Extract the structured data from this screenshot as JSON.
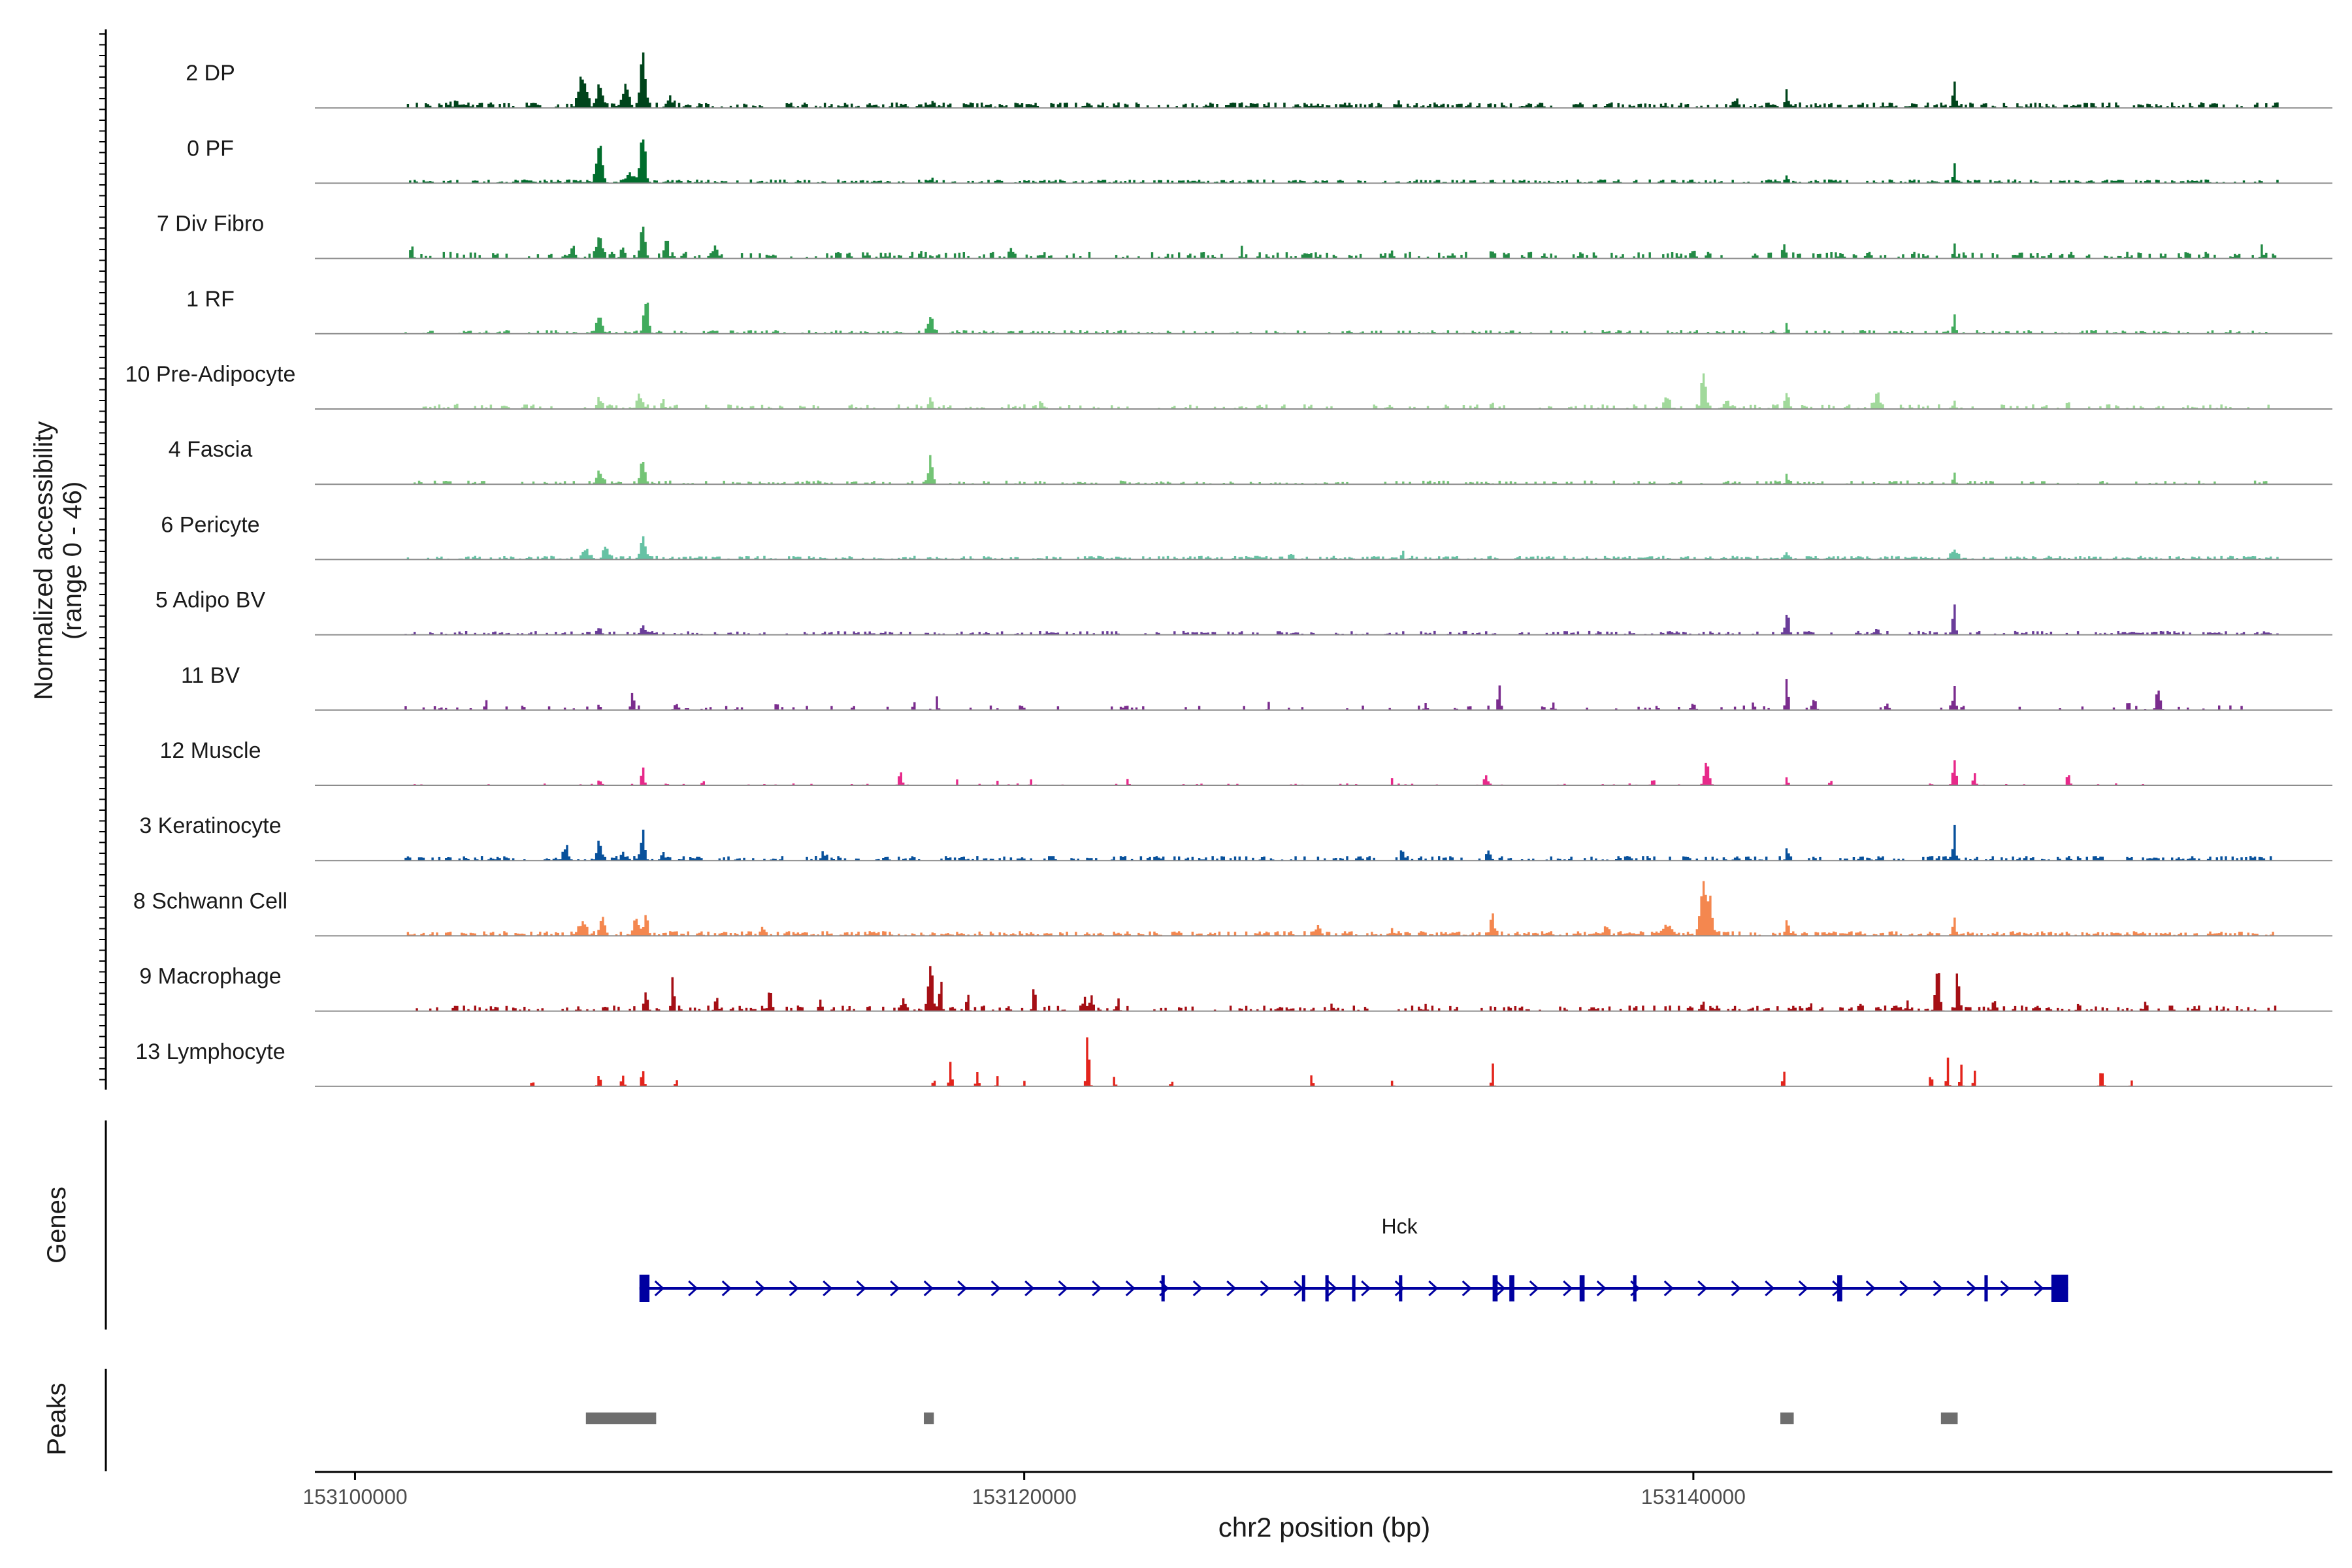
{
  "chart_data": {
    "type": "area",
    "title": "",
    "ylabel": "Normalized accessibility",
    "ylabel_range": "(range 0 - 46)",
    "y_range": [
      0,
      46
    ],
    "xlabel": "chr2 position (bp)",
    "chromosome": "chr2",
    "x_range": [
      153098800,
      153159100
    ],
    "x_ticks": [
      {
        "value": 153100000,
        "label": "153100000"
      },
      {
        "value": 153120000,
        "label": "153120000"
      },
      {
        "value": 153140000,
        "label": "153140000"
      }
    ],
    "tracks": [
      {
        "name": "2 DP",
        "color": "#00441b",
        "noise": 0.06,
        "density": 0.55,
        "peaks": [
          [
            153106800,
            0.45,
            110
          ],
          [
            153107300,
            0.3,
            80
          ],
          [
            153108100,
            0.35,
            90
          ],
          [
            153108600,
            0.85,
            70
          ],
          [
            153109400,
            0.15,
            90
          ],
          [
            153103200,
            0.06,
            200
          ],
          [
            153117200,
            0.05,
            150
          ],
          [
            153131200,
            0.06,
            60
          ],
          [
            153141300,
            0.12,
            60
          ],
          [
            153142800,
            0.25,
            40
          ],
          [
            153147800,
            0.4,
            40
          ]
        ]
      },
      {
        "name": "0 PF",
        "color": "#006d2c",
        "noise": 0.04,
        "density": 0.5,
        "peaks": [
          [
            153107300,
            0.55,
            90
          ],
          [
            153108600,
            0.8,
            70
          ],
          [
            153108200,
            0.12,
            150
          ],
          [
            153117200,
            0.05,
            100
          ],
          [
            153142800,
            0.15,
            40
          ],
          [
            153147800,
            0.3,
            40
          ]
        ]
      },
      {
        "name": "7 Div Fibro",
        "color": "#238b45",
        "noise": 0.07,
        "density": 0.35,
        "peaks": [
          [
            153101700,
            0.15,
            40
          ],
          [
            153106500,
            0.15,
            80
          ],
          [
            153107300,
            0.4,
            80
          ],
          [
            153108000,
            0.2,
            60
          ],
          [
            153108600,
            0.55,
            70
          ],
          [
            153109300,
            0.3,
            60
          ],
          [
            153110800,
            0.15,
            60
          ],
          [
            153116900,
            0.12,
            50
          ],
          [
            153119600,
            0.15,
            50
          ],
          [
            153126500,
            0.12,
            40
          ],
          [
            153131000,
            0.12,
            40
          ],
          [
            153134000,
            0.12,
            40
          ],
          [
            153140000,
            0.15,
            60
          ],
          [
            153142700,
            0.25,
            40
          ],
          [
            153147800,
            0.2,
            40
          ],
          [
            153157000,
            0.15,
            40
          ]
        ]
      },
      {
        "name": "1 RF",
        "color": "#41ab5d",
        "noise": 0.04,
        "density": 0.35,
        "peaks": [
          [
            153107300,
            0.25,
            90
          ],
          [
            153108700,
            0.55,
            70
          ],
          [
            153117200,
            0.25,
            80
          ],
          [
            153142800,
            0.15,
            40
          ],
          [
            153147800,
            0.3,
            40
          ]
        ]
      },
      {
        "name": "10 Pre-Adipocyte",
        "color": "#a1d99b",
        "noise": 0.05,
        "density": 0.28,
        "peaks": [
          [
            153103000,
            0.08,
            40
          ],
          [
            153107300,
            0.18,
            60
          ],
          [
            153108500,
            0.25,
            70
          ],
          [
            153109200,
            0.15,
            50
          ],
          [
            153117200,
            0.2,
            60
          ],
          [
            153120500,
            0.12,
            40
          ],
          [
            153134000,
            0.1,
            40
          ],
          [
            153139200,
            0.18,
            80
          ],
          [
            153140300,
            0.55,
            60
          ],
          [
            153141000,
            0.15,
            60
          ],
          [
            153142800,
            0.3,
            60
          ],
          [
            153145500,
            0.25,
            80
          ],
          [
            153147800,
            0.15,
            40
          ],
          [
            153151200,
            0.15,
            40
          ]
        ]
      },
      {
        "name": "4 Fascia",
        "color": "#74c476",
        "noise": 0.04,
        "density": 0.3,
        "peaks": [
          [
            153107300,
            0.22,
            80
          ],
          [
            153108600,
            0.4,
            70
          ],
          [
            153117200,
            0.45,
            60
          ],
          [
            153142800,
            0.18,
            40
          ],
          [
            153147800,
            0.2,
            40
          ]
        ]
      },
      {
        "name": "6 Pericyte",
        "color": "#66c2a4",
        "noise": 0.04,
        "density": 0.55,
        "peaks": [
          [
            153106900,
            0.15,
            80
          ],
          [
            153107500,
            0.2,
            80
          ],
          [
            153108600,
            0.35,
            70
          ],
          [
            153128000,
            0.1,
            60
          ],
          [
            153131300,
            0.1,
            40
          ],
          [
            153142800,
            0.12,
            40
          ],
          [
            153147800,
            0.15,
            100
          ]
        ]
      },
      {
        "name": "5 Adipo BV",
        "color": "#6a3d9a",
        "noise": 0.04,
        "density": 0.4,
        "peaks": [
          [
            153107300,
            0.12,
            60
          ],
          [
            153108600,
            0.18,
            60
          ],
          [
            153142800,
            0.3,
            60
          ],
          [
            153147800,
            0.5,
            40
          ],
          [
            153145500,
            0.1,
            60
          ]
        ]
      },
      {
        "name": "11 BV",
        "color": "#7b2d8e",
        "noise": 0.05,
        "density": 0.12,
        "peaks": [
          [
            153103900,
            0.15,
            30
          ],
          [
            153107300,
            0.12,
            30
          ],
          [
            153108300,
            0.25,
            50
          ],
          [
            153109600,
            0.1,
            60
          ],
          [
            153112600,
            0.12,
            40
          ],
          [
            153116700,
            0.15,
            30
          ],
          [
            153117400,
            0.2,
            30
          ],
          [
            153127300,
            0.12,
            30
          ],
          [
            153132000,
            0.1,
            40
          ],
          [
            153134200,
            0.45,
            40
          ],
          [
            153135800,
            0.15,
            30
          ],
          [
            153140000,
            0.1,
            60
          ],
          [
            153141800,
            0.12,
            40
          ],
          [
            153142800,
            0.55,
            40
          ],
          [
            153143600,
            0.15,
            60
          ],
          [
            153145800,
            0.12,
            40
          ],
          [
            153147800,
            0.45,
            40
          ],
          [
            153153000,
            0.15,
            40
          ],
          [
            153153900,
            0.3,
            60
          ]
        ]
      },
      {
        "name": "12 Muscle",
        "color": "#e7298a",
        "noise": 0.02,
        "density": 0.1,
        "peaks": [
          [
            153107300,
            0.1,
            40
          ],
          [
            153108600,
            0.35,
            40
          ],
          [
            153110400,
            0.1,
            30
          ],
          [
            153116300,
            0.2,
            50
          ],
          [
            153118000,
            0.1,
            30
          ],
          [
            153119200,
            0.08,
            30
          ],
          [
            153120200,
            0.1,
            30
          ],
          [
            153123100,
            0.1,
            30
          ],
          [
            153131000,
            0.08,
            30
          ],
          [
            153133800,
            0.18,
            50
          ],
          [
            153138800,
            0.12,
            40
          ],
          [
            153140400,
            0.35,
            70
          ],
          [
            153142800,
            0.1,
            40
          ],
          [
            153144100,
            0.1,
            30
          ],
          [
            153147800,
            0.4,
            50
          ],
          [
            153148400,
            0.2,
            40
          ],
          [
            153151200,
            0.2,
            40
          ]
        ]
      },
      {
        "name": "3 Keratinocyte",
        "color": "#08519c",
        "noise": 0.05,
        "density": 0.45,
        "peaks": [
          [
            153106300,
            0.18,
            80
          ],
          [
            153107300,
            0.3,
            70
          ],
          [
            153108000,
            0.15,
            60
          ],
          [
            153108600,
            0.4,
            60
          ],
          [
            153109200,
            0.12,
            60
          ],
          [
            153114000,
            0.08,
            80
          ],
          [
            153131300,
            0.15,
            40
          ],
          [
            153133900,
            0.12,
            60
          ],
          [
            153142800,
            0.15,
            40
          ],
          [
            153147800,
            0.45,
            40
          ]
        ]
      },
      {
        "name": "8 Schwann Cell",
        "color": "#f4874f",
        "noise": 0.05,
        "density": 0.6,
        "peaks": [
          [
            153106800,
            0.2,
            100
          ],
          [
            153107400,
            0.25,
            80
          ],
          [
            153108400,
            0.3,
            80
          ],
          [
            153108700,
            0.28,
            60
          ],
          [
            153112200,
            0.12,
            60
          ],
          [
            153128800,
            0.12,
            60
          ],
          [
            153131000,
            0.08,
            60
          ],
          [
            153134000,
            0.3,
            60
          ],
          [
            153137400,
            0.1,
            80
          ],
          [
            153139200,
            0.15,
            100
          ],
          [
            153140300,
            0.75,
            90
          ],
          [
            153140500,
            0.55,
            60
          ],
          [
            153142800,
            0.2,
            40
          ],
          [
            153147800,
            0.22,
            40
          ]
        ]
      },
      {
        "name": "9 Macrophage",
        "color": "#a50f15",
        "noise": 0.06,
        "density": 0.35,
        "peaks": [
          [
            153108700,
            0.3,
            50
          ],
          [
            153109500,
            0.55,
            40
          ],
          [
            153110800,
            0.22,
            50
          ],
          [
            153112400,
            0.3,
            50
          ],
          [
            153113900,
            0.18,
            40
          ],
          [
            153116400,
            0.2,
            40
          ],
          [
            153117200,
            0.75,
            60
          ],
          [
            153117500,
            0.5,
            40
          ],
          [
            153118300,
            0.25,
            40
          ],
          [
            153120300,
            0.45,
            40
          ],
          [
            153121800,
            0.2,
            60
          ],
          [
            153122000,
            0.25,
            40
          ],
          [
            153122800,
            0.15,
            40
          ],
          [
            153129200,
            0.12,
            40
          ],
          [
            153132000,
            0.1,
            40
          ],
          [
            153140300,
            0.12,
            40
          ],
          [
            153143500,
            0.12,
            40
          ],
          [
            153145000,
            0.1,
            40
          ],
          [
            153146400,
            0.15,
            40
          ],
          [
            153147300,
            0.75,
            60
          ],
          [
            153147900,
            0.7,
            40
          ],
          [
            153149000,
            0.15,
            60
          ],
          [
            153151500,
            0.1,
            40
          ],
          [
            153153500,
            0.1,
            40
          ],
          [
            153155000,
            0.08,
            40
          ]
        ]
      },
      {
        "name": "13 Lymphocyte",
        "color": "#e3241c",
        "noise": 0.0,
        "density": 0.05,
        "peaks": [
          [
            153105300,
            0.1,
            30
          ],
          [
            153107300,
            0.2,
            40
          ],
          [
            153108000,
            0.18,
            40
          ],
          [
            153108600,
            0.3,
            40
          ],
          [
            153109600,
            0.12,
            30
          ],
          [
            153117300,
            0.1,
            40
          ],
          [
            153117800,
            0.35,
            40
          ],
          [
            153118600,
            0.2,
            40
          ],
          [
            153119200,
            0.15,
            30
          ],
          [
            153120000,
            0.1,
            30
          ],
          [
            153121900,
            0.95,
            40
          ],
          [
            153122700,
            0.15,
            30
          ],
          [
            153124400,
            0.1,
            30
          ],
          [
            153128600,
            0.2,
            30
          ],
          [
            153131000,
            0.1,
            30
          ],
          [
            153134000,
            0.35,
            30
          ],
          [
            153142700,
            0.3,
            30
          ],
          [
            153147100,
            0.25,
            30
          ],
          [
            153147600,
            0.45,
            30
          ],
          [
            153148000,
            0.4,
            30
          ],
          [
            153148400,
            0.25,
            30
          ],
          [
            153152200,
            0.3,
            40
          ],
          [
            153153100,
            0.1,
            30
          ]
        ]
      }
    ],
    "genes": [
      {
        "name": "Hck",
        "start": 153108500,
        "end": 153151200,
        "strand": "+",
        "color": "#0000a0",
        "exons": [
          [
            153108500,
            153108800
          ],
          [
            153124100,
            153124200
          ],
          [
            153128300,
            153128400
          ],
          [
            153129000,
            153129100
          ],
          [
            153129800,
            153129900
          ],
          [
            153131200,
            153131300
          ],
          [
            153134000,
            153134150
          ],
          [
            153134500,
            153134650
          ],
          [
            153136600,
            153136750
          ],
          [
            153138200,
            153138300
          ],
          [
            153144300,
            153144450
          ],
          [
            153148700,
            153148800
          ],
          [
            153150700,
            153151200
          ]
        ]
      }
    ],
    "peaks_track": [
      {
        "start": 153106900,
        "end": 153109000
      },
      {
        "start": 153117000,
        "end": 153117300
      },
      {
        "start": 153142600,
        "end": 153143000
      },
      {
        "start": 153147400,
        "end": 153147900
      }
    ],
    "panel_labels": {
      "genes": "Genes",
      "peaks": "Peaks"
    }
  }
}
